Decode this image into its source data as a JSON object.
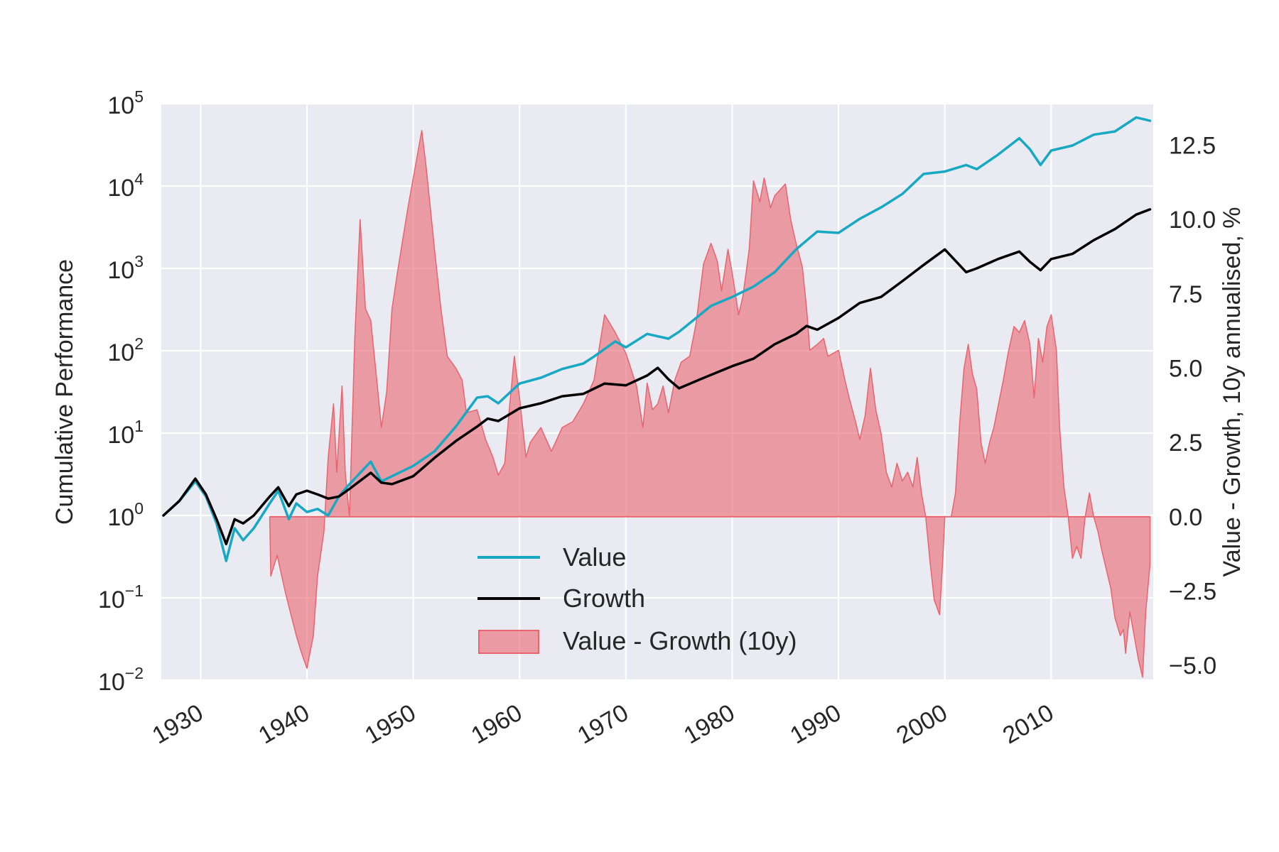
{
  "chart_data": {
    "type": "line",
    "title": "",
    "xlabel": "",
    "ylabel_left": "Cumulative Performance",
    "ylabel_right": "Value - Growth, 10y annualised, %",
    "xlim": [
      1926.3,
      2019.6
    ],
    "ylim_left_log10": [
      -2,
      5
    ],
    "ylim_right": [
      -5.5,
      13.9
    ],
    "x_ticks": [
      1930,
      1940,
      1950,
      1960,
      1970,
      1980,
      1990,
      2000,
      2010
    ],
    "x_tick_labels": [
      "1930",
      "1940",
      "1950",
      "1960",
      "1970",
      "1980",
      "1990",
      "2000",
      "2010"
    ],
    "y_left_tick_exponents": [
      -2,
      -1,
      0,
      1,
      2,
      3,
      4,
      5
    ],
    "y_left_tick_base": "10",
    "y_left_tick_exps_text": [
      "−2",
      "−1",
      "0",
      "1",
      "2",
      "3",
      "4",
      "5"
    ],
    "y_right_ticks": [
      -5.0,
      -2.5,
      0.0,
      2.5,
      5.0,
      7.5,
      10.0,
      12.5
    ],
    "y_right_tick_labels": [
      "−5.0",
      "−2.5",
      "0.0",
      "2.5",
      "5.0",
      "7.5",
      "10.0",
      "12.5"
    ],
    "grid": true,
    "legend_position": "lower-center",
    "series": [
      {
        "name": "Value",
        "color": "#17a9c3",
        "axis": "left",
        "points": [
          [
            1926.5,
            1.0
          ],
          [
            1928,
            1.5
          ],
          [
            1929.5,
            2.6
          ],
          [
            1930.5,
            1.7
          ],
          [
            1931.5,
            0.8
          ],
          [
            1932.4,
            0.28
          ],
          [
            1933.2,
            0.7
          ],
          [
            1934,
            0.5
          ],
          [
            1935,
            0.7
          ],
          [
            1936.5,
            1.4
          ],
          [
            1937.3,
            2.0
          ],
          [
            1938.3,
            0.9
          ],
          [
            1939,
            1.4
          ],
          [
            1940,
            1.1
          ],
          [
            1941,
            1.2
          ],
          [
            1942,
            1.0
          ],
          [
            1943,
            1.7
          ],
          [
            1944,
            2.4
          ],
          [
            1946,
            4.5
          ],
          [
            1947,
            2.6
          ],
          [
            1948,
            3.0
          ],
          [
            1950,
            4.0
          ],
          [
            1952,
            6.0
          ],
          [
            1954,
            12.0
          ],
          [
            1956,
            27.0
          ],
          [
            1957,
            28.0
          ],
          [
            1958,
            23.0
          ],
          [
            1960,
            40.0
          ],
          [
            1962,
            47.0
          ],
          [
            1964,
            60.0
          ],
          [
            1966,
            70.0
          ],
          [
            1967,
            85.0
          ],
          [
            1969,
            130.0
          ],
          [
            1970,
            110.0
          ],
          [
            1972,
            160.0
          ],
          [
            1974,
            140.0
          ],
          [
            1975,
            170.0
          ],
          [
            1978,
            350.0
          ],
          [
            1980,
            450.0
          ],
          [
            1982,
            600.0
          ],
          [
            1984,
            900.0
          ],
          [
            1986,
            1700.0
          ],
          [
            1988,
            2800.0
          ],
          [
            1990,
            2700.0
          ],
          [
            1992,
            4000.0
          ],
          [
            1994,
            5500.0
          ],
          [
            1996,
            8000.0
          ],
          [
            1998,
            14000.0
          ],
          [
            2000,
            15000.0
          ],
          [
            2002,
            18000.0
          ],
          [
            2003,
            16000.0
          ],
          [
            2005,
            24000.0
          ],
          [
            2007,
            38000.0
          ],
          [
            2008,
            28000.0
          ],
          [
            2009,
            18000.0
          ],
          [
            2010,
            27000.0
          ],
          [
            2012,
            31000.0
          ],
          [
            2014,
            42000.0
          ],
          [
            2016,
            46000.0
          ],
          [
            2018,
            68000.0
          ],
          [
            2019.3,
            62000.0
          ]
        ]
      },
      {
        "name": "Growth",
        "color": "#000000",
        "axis": "left",
        "points": [
          [
            1926.5,
            1.0
          ],
          [
            1928,
            1.5
          ],
          [
            1929.5,
            2.8
          ],
          [
            1930.5,
            1.8
          ],
          [
            1931.5,
            0.9
          ],
          [
            1932.4,
            0.45
          ],
          [
            1933.2,
            0.9
          ],
          [
            1934,
            0.8
          ],
          [
            1935,
            1.0
          ],
          [
            1936.5,
            1.7
          ],
          [
            1937.3,
            2.2
          ],
          [
            1938.3,
            1.3
          ],
          [
            1939,
            1.8
          ],
          [
            1940,
            2.0
          ],
          [
            1941,
            1.8
          ],
          [
            1942,
            1.6
          ],
          [
            1943,
            1.7
          ],
          [
            1944,
            2.1
          ],
          [
            1946,
            3.3
          ],
          [
            1947,
            2.5
          ],
          [
            1948,
            2.4
          ],
          [
            1950,
            3.0
          ],
          [
            1952,
            5.0
          ],
          [
            1954,
            8.0
          ],
          [
            1956,
            12.0
          ],
          [
            1957,
            15.0
          ],
          [
            1958,
            14.0
          ],
          [
            1960,
            20.0
          ],
          [
            1962,
            23.0
          ],
          [
            1964,
            28.0
          ],
          [
            1966,
            30.0
          ],
          [
            1968,
            40.0
          ],
          [
            1970,
            38.0
          ],
          [
            1972,
            50.0
          ],
          [
            1973,
            62.0
          ],
          [
            1974,
            45.0
          ],
          [
            1975,
            35.0
          ],
          [
            1977,
            45.0
          ],
          [
            1980,
            65.0
          ],
          [
            1982,
            80.0
          ],
          [
            1984,
            120.0
          ],
          [
            1986,
            160.0
          ],
          [
            1987,
            200.0
          ],
          [
            1988,
            180.0
          ],
          [
            1990,
            250.0
          ],
          [
            1992,
            380.0
          ],
          [
            1994,
            450.0
          ],
          [
            1996,
            700.0
          ],
          [
            1998,
            1100.0
          ],
          [
            2000,
            1700.0
          ],
          [
            2002,
            900.0
          ],
          [
            2003,
            1000.0
          ],
          [
            2005,
            1300.0
          ],
          [
            2007,
            1600.0
          ],
          [
            2008,
            1200.0
          ],
          [
            2009,
            950.0
          ],
          [
            2010,
            1300.0
          ],
          [
            2012,
            1500.0
          ],
          [
            2014,
            2200.0
          ],
          [
            2016,
            3000.0
          ],
          [
            2018,
            4500.0
          ],
          [
            2019.3,
            5200.0
          ]
        ]
      },
      {
        "name": "Value - Growth (10y)",
        "color": "#e8646e",
        "axis": "right",
        "type": "area",
        "baseline": 0,
        "points": [
          [
            1936.5,
            0.0
          ],
          [
            1936.6,
            -2.0
          ],
          [
            1937.2,
            -1.3
          ],
          [
            1938,
            -2.6
          ],
          [
            1939,
            -4.0
          ],
          [
            1939.5,
            -4.6
          ],
          [
            1940,
            -5.1
          ],
          [
            1940.6,
            -4.0
          ],
          [
            1941,
            -2.0
          ],
          [
            1941.6,
            -0.5
          ],
          [
            1942,
            2.0
          ],
          [
            1942.5,
            3.8
          ],
          [
            1942.8,
            1.5
          ],
          [
            1943.3,
            4.4
          ],
          [
            1943.6,
            1.5
          ],
          [
            1944,
            0.0
          ],
          [
            1944.5,
            6.0
          ],
          [
            1945,
            10.0
          ],
          [
            1945.5,
            7.0
          ],
          [
            1946,
            6.6
          ],
          [
            1946.6,
            4.5
          ],
          [
            1947,
            3.0
          ],
          [
            1947.5,
            4.2
          ],
          [
            1948,
            7.0
          ],
          [
            1948.5,
            8.2
          ],
          [
            1949,
            9.3
          ],
          [
            1949.5,
            10.4
          ],
          [
            1950.3,
            12.0
          ],
          [
            1950.8,
            13.0
          ],
          [
            1951.2,
            11.8
          ],
          [
            1951.6,
            10.4
          ],
          [
            1952,
            9.0
          ],
          [
            1952.6,
            7.0
          ],
          [
            1953.2,
            5.4
          ],
          [
            1954,
            5.0
          ],
          [
            1954.6,
            4.6
          ],
          [
            1955,
            3.5
          ],
          [
            1956,
            3.6
          ],
          [
            1956.8,
            2.6
          ],
          [
            1957.5,
            2.0
          ],
          [
            1958,
            1.4
          ],
          [
            1958.6,
            1.8
          ],
          [
            1959,
            3.5
          ],
          [
            1959.5,
            5.4
          ],
          [
            1960,
            4.0
          ],
          [
            1960.6,
            2.0
          ],
          [
            1961,
            2.5
          ],
          [
            1962,
            3.0
          ],
          [
            1963,
            2.2
          ],
          [
            1964,
            3.0
          ],
          [
            1965,
            3.2
          ],
          [
            1966,
            3.8
          ],
          [
            1967,
            4.6
          ],
          [
            1968,
            6.8
          ],
          [
            1969,
            6.2
          ],
          [
            1970,
            5.5
          ],
          [
            1971,
            4.4
          ],
          [
            1971.6,
            3.0
          ],
          [
            1972,
            4.5
          ],
          [
            1972.5,
            3.6
          ],
          [
            1973,
            3.8
          ],
          [
            1973.5,
            4.4
          ],
          [
            1974,
            3.5
          ],
          [
            1974.6,
            4.6
          ],
          [
            1975.2,
            5.2
          ],
          [
            1976,
            5.4
          ],
          [
            1976.6,
            6.5
          ],
          [
            1977.3,
            8.5
          ],
          [
            1978,
            9.2
          ],
          [
            1978.6,
            8.6
          ],
          [
            1979,
            7.6
          ],
          [
            1979.6,
            9.0
          ],
          [
            1980,
            8.2
          ],
          [
            1980.6,
            6.8
          ],
          [
            1981,
            7.4
          ],
          [
            1981.6,
            9.0
          ],
          [
            1982,
            11.3
          ],
          [
            1982.6,
            10.6
          ],
          [
            1983,
            11.4
          ],
          [
            1983.6,
            10.4
          ],
          [
            1984,
            10.8
          ],
          [
            1985,
            11.2
          ],
          [
            1985.5,
            10.0
          ],
          [
            1986,
            9.2
          ],
          [
            1986.6,
            8.4
          ],
          [
            1987,
            7.0
          ],
          [
            1987.3,
            5.6
          ],
          [
            1988,
            5.8
          ],
          [
            1988.6,
            6.0
          ],
          [
            1989,
            5.4
          ],
          [
            1990,
            5.6
          ],
          [
            1990.6,
            4.6
          ],
          [
            1991,
            4.0
          ],
          [
            1991.6,
            3.2
          ],
          [
            1992,
            2.6
          ],
          [
            1992.5,
            3.4
          ],
          [
            1993,
            5.0
          ],
          [
            1993.5,
            3.6
          ],
          [
            1994,
            2.8
          ],
          [
            1994.5,
            1.5
          ],
          [
            1995,
            1.0
          ],
          [
            1995.5,
            1.8
          ],
          [
            1996,
            1.2
          ],
          [
            1996.5,
            1.5
          ],
          [
            1997,
            1.0
          ],
          [
            1997.4,
            2.0
          ],
          [
            1997.8,
            0.8
          ],
          [
            1998.2,
            0.0
          ],
          [
            1998.6,
            -1.5
          ],
          [
            1999,
            -2.8
          ],
          [
            1999.5,
            -3.3
          ],
          [
            1999.8,
            -1.5
          ],
          [
            2000,
            0.0
          ],
          [
            2000.6,
            0.0
          ],
          [
            2001,
            0.8
          ],
          [
            2001.4,
            3.2
          ],
          [
            2001.8,
            5.0
          ],
          [
            2002.2,
            5.8
          ],
          [
            2002.6,
            4.8
          ],
          [
            2003,
            4.3
          ],
          [
            2003.4,
            2.5
          ],
          [
            2003.8,
            1.8
          ],
          [
            2004.2,
            2.5
          ],
          [
            2004.6,
            3.0
          ],
          [
            2005,
            3.7
          ],
          [
            2005.5,
            4.6
          ],
          [
            2006,
            5.6
          ],
          [
            2006.5,
            6.4
          ],
          [
            2007,
            6.2
          ],
          [
            2007.5,
            6.6
          ],
          [
            2008,
            5.8
          ],
          [
            2008.4,
            4.0
          ],
          [
            2008.8,
            6.0
          ],
          [
            2009.2,
            5.2
          ],
          [
            2009.6,
            6.4
          ],
          [
            2010,
            6.8
          ],
          [
            2010.5,
            5.6
          ],
          [
            2010.8,
            3.0
          ],
          [
            2011.2,
            1.0
          ],
          [
            2011.6,
            0.0
          ],
          [
            2012,
            -1.4
          ],
          [
            2012.4,
            -1.0
          ],
          [
            2012.8,
            -1.4
          ],
          [
            2013.2,
            0.0
          ],
          [
            2013.6,
            0.8
          ],
          [
            2014,
            0.0
          ],
          [
            2014.4,
            -0.5
          ],
          [
            2014.8,
            -1.2
          ],
          [
            2015.2,
            -1.8
          ],
          [
            2015.6,
            -2.4
          ],
          [
            2016,
            -3.4
          ],
          [
            2016.5,
            -4.0
          ],
          [
            2016.8,
            -3.8
          ],
          [
            2017,
            -4.6
          ],
          [
            2017.4,
            -3.2
          ],
          [
            2017.8,
            -4.0
          ],
          [
            2018.2,
            -4.8
          ],
          [
            2018.6,
            -5.4
          ],
          [
            2018.9,
            -3.2
          ],
          [
            2019.3,
            -1.6
          ],
          [
            2019.3,
            0.0
          ]
        ]
      }
    ]
  }
}
